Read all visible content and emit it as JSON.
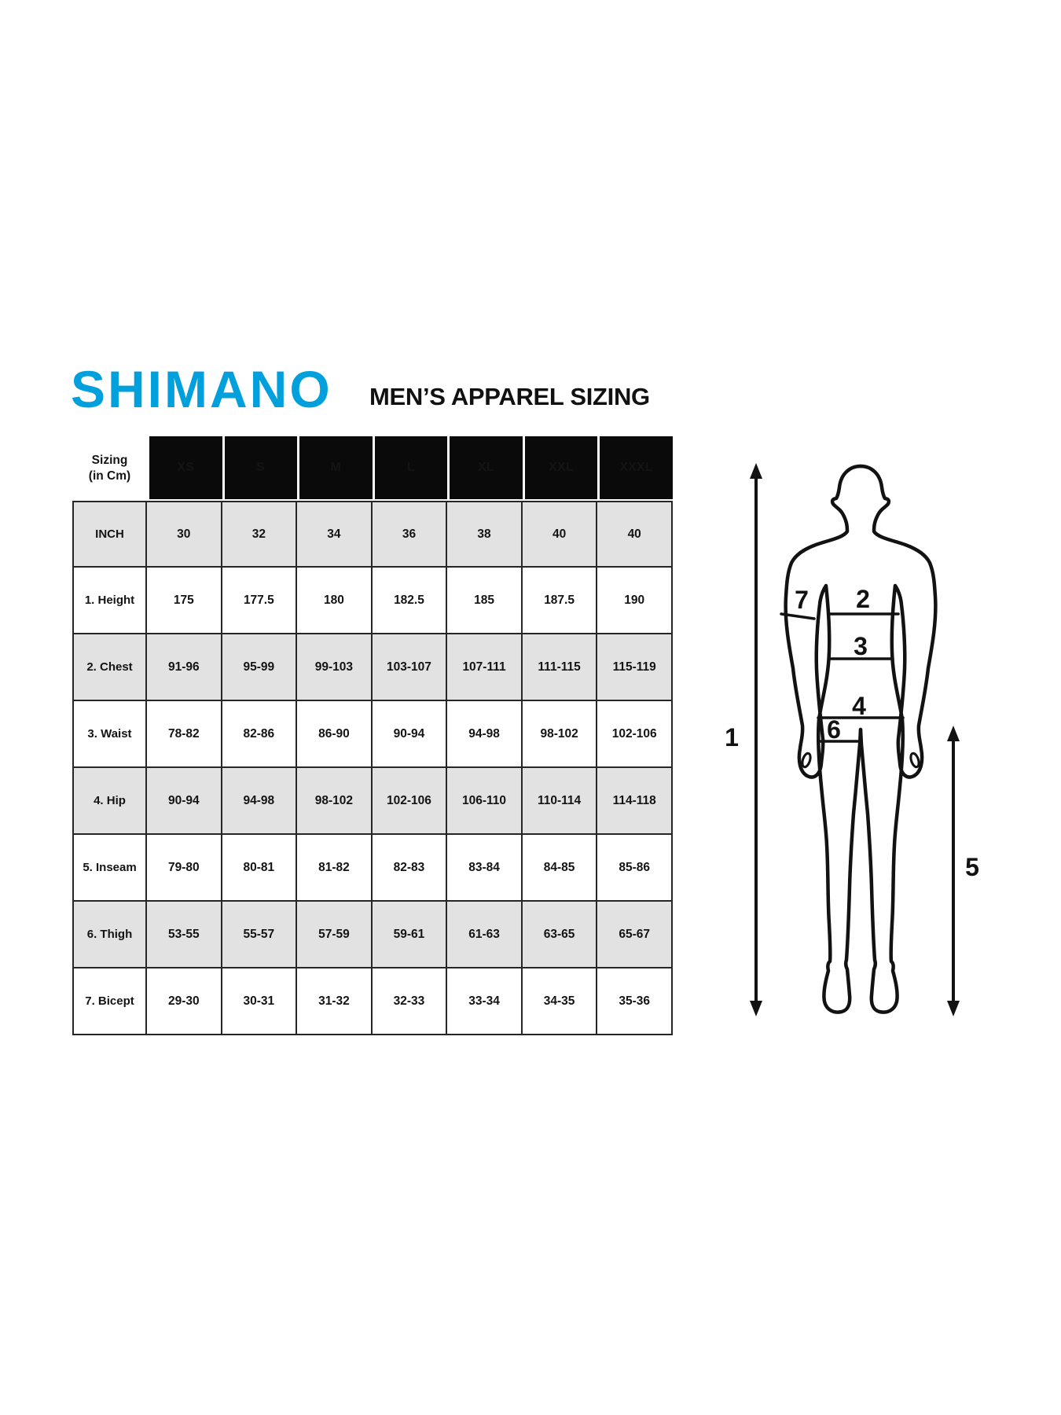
{
  "header": {
    "logo": "SHIMANO",
    "title": "MEN’S APPAREL SIZING",
    "logo_color": "#00a0dc"
  },
  "table": {
    "corner": {
      "line1": "Sizing",
      "line2": "(in Cm)"
    },
    "size_headers": [
      "XS",
      "S",
      "M",
      "L",
      "XL",
      "XXL",
      "XXXL"
    ],
    "rows": [
      {
        "label": "INCH",
        "shaded": true,
        "values": [
          "30",
          "32",
          "34",
          "36",
          "38",
          "40",
          "40"
        ]
      },
      {
        "label": "1. Height",
        "shaded": false,
        "values": [
          "175",
          "177.5",
          "180",
          "182.5",
          "185",
          "187.5",
          "190"
        ]
      },
      {
        "label": "2. Chest",
        "shaded": true,
        "values": [
          "91-96",
          "95-99",
          "99-103",
          "103-107",
          "107-111",
          "111-115",
          "115-119"
        ]
      },
      {
        "label": "3. Waist",
        "shaded": false,
        "values": [
          "78-82",
          "82-86",
          "86-90",
          "90-94",
          "94-98",
          "98-102",
          "102-106"
        ]
      },
      {
        "label": "4. Hip",
        "shaded": true,
        "values": [
          "90-94",
          "94-98",
          "98-102",
          "102-106",
          "106-110",
          "110-114",
          "114-118"
        ]
      },
      {
        "label": "5. Inseam",
        "shaded": false,
        "values": [
          "79-80",
          "80-81",
          "81-82",
          "82-83",
          "83-84",
          "84-85",
          "85-86"
        ]
      },
      {
        "label": "6. Thigh",
        "shaded": true,
        "values": [
          "53-55",
          "55-57",
          "57-59",
          "59-61",
          "61-63",
          "63-65",
          "65-67"
        ]
      },
      {
        "label": "7. Bicept",
        "shaded": false,
        "values": [
          "29-30",
          "30-31",
          "31-32",
          "32-33",
          "33-34",
          "34-35",
          "35-36"
        ]
      }
    ]
  },
  "chart_data": {
    "type": "table",
    "title": "MEN’S APPAREL SIZING",
    "columns": [
      "Sizing (in Cm)",
      "XS",
      "S",
      "M",
      "L",
      "XL",
      "XXL",
      "XXXL"
    ],
    "rows": [
      [
        "INCH",
        "30",
        "32",
        "34",
        "36",
        "38",
        "40",
        "40"
      ],
      [
        "1. Height",
        "175",
        "177.5",
        "180",
        "182.5",
        "185",
        "187.5",
        "190"
      ],
      [
        "2. Chest",
        "91-96",
        "95-99",
        "99-103",
        "103-107",
        "107-111",
        "111-115",
        "115-119"
      ],
      [
        "3. Waist",
        "78-82",
        "82-86",
        "86-90",
        "90-94",
        "94-98",
        "98-102",
        "102-106"
      ],
      [
        "4. Hip",
        "90-94",
        "94-98",
        "98-102",
        "102-106",
        "106-110",
        "110-114",
        "114-118"
      ],
      [
        "5. Inseam",
        "79-80",
        "80-81",
        "81-82",
        "82-83",
        "83-84",
        "84-85",
        "85-86"
      ],
      [
        "6. Thigh",
        "53-55",
        "55-57",
        "57-59",
        "59-61",
        "61-63",
        "63-65",
        "65-67"
      ],
      [
        "7. Bicept",
        "29-30",
        "30-31",
        "31-32",
        "32-33",
        "33-34",
        "34-35",
        "35-36"
      ]
    ]
  },
  "diagram": {
    "labels": {
      "height": "1",
      "chest": "2",
      "waist": "3",
      "hip": "4",
      "inseam": "5",
      "thigh": "6",
      "bicep": "7"
    }
  }
}
